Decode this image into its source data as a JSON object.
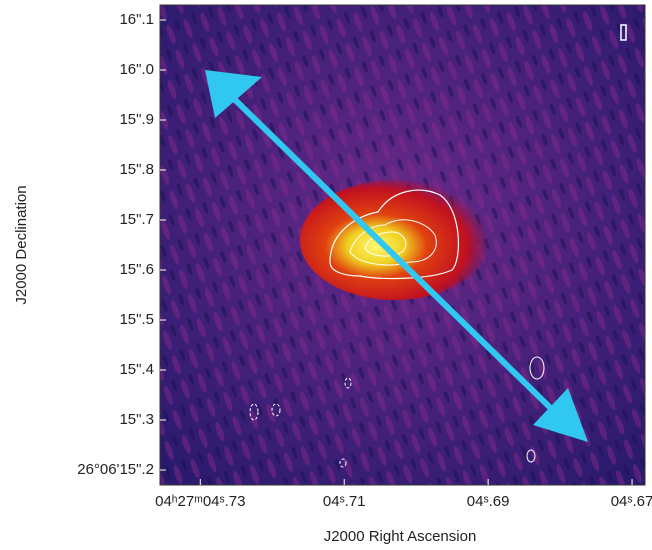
{
  "chart_data": {
    "type": "image",
    "xlabel": "J2000 Right Ascension",
    "ylabel": "J2000 Declination",
    "xlim": [
      4.7356,
      4.6682
    ],
    "ylim": [
      15.17,
      16.13
    ],
    "xticks": [
      {
        "value": 4.73,
        "label": "04ʰ27ᵐ04ˢ.73"
      },
      {
        "value": 4.71,
        "label": "04ˢ.71"
      },
      {
        "value": 4.69,
        "label": "04ˢ.69"
      },
      {
        "value": 4.67,
        "label": "04ˢ.67"
      }
    ],
    "yticks": [
      {
        "value": 15.2,
        "label": "26°06'15\".2"
      },
      {
        "value": 15.3,
        "label": "15\".3"
      },
      {
        "value": 15.4,
        "label": "15\".4"
      },
      {
        "value": 15.5,
        "label": "15\".5"
      },
      {
        "value": 15.6,
        "label": "15\".6"
      },
      {
        "value": 15.7,
        "label": "15\".7"
      },
      {
        "value": 15.8,
        "label": "15\".8"
      },
      {
        "value": 15.9,
        "label": "15\".9"
      },
      {
        "value": 16.0,
        "label": "16\".0"
      },
      {
        "value": 16.1,
        "label": "16\".1"
      }
    ]
  }
}
